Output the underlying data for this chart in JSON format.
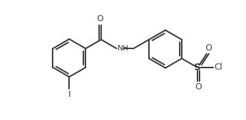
{
  "background_color": "#ffffff",
  "line_color": "#3a3a3a",
  "text_color": "#3a3a3a",
  "lw": 1.5,
  "figsize": [
    3.6,
    1.76
  ],
  "dpi": 100,
  "xlim": [
    0,
    360
  ],
  "ylim": [
    0,
    176
  ]
}
